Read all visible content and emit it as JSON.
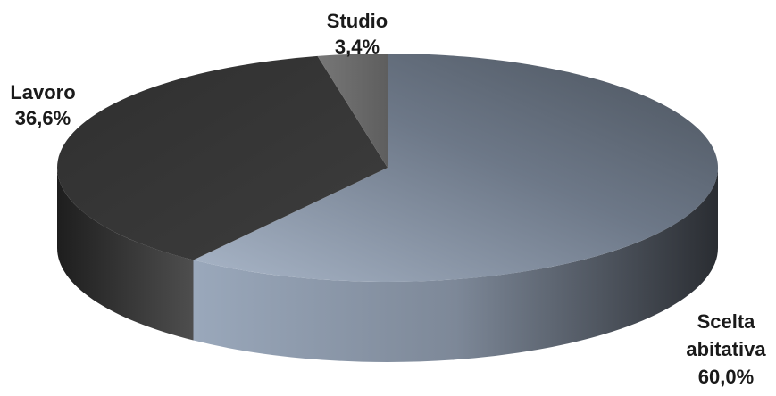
{
  "chart_data": {
    "type": "pie",
    "style": "3d",
    "title": "",
    "slices": [
      {
        "label_lines": [
          "Scelta",
          "abitativa"
        ],
        "value": 60.0,
        "value_label": "60,0%",
        "color": "#8a99ab"
      },
      {
        "label_lines": [
          "Lavoro"
        ],
        "value": 36.6,
        "value_label": "36,6%",
        "color": "#3b3b3b"
      },
      {
        "label_lines": [
          "Studio"
        ],
        "value": 3.4,
        "value_label": "3,4%",
        "color": "#6a6a6a"
      }
    ],
    "legend": "none",
    "data_labels": "outside"
  }
}
